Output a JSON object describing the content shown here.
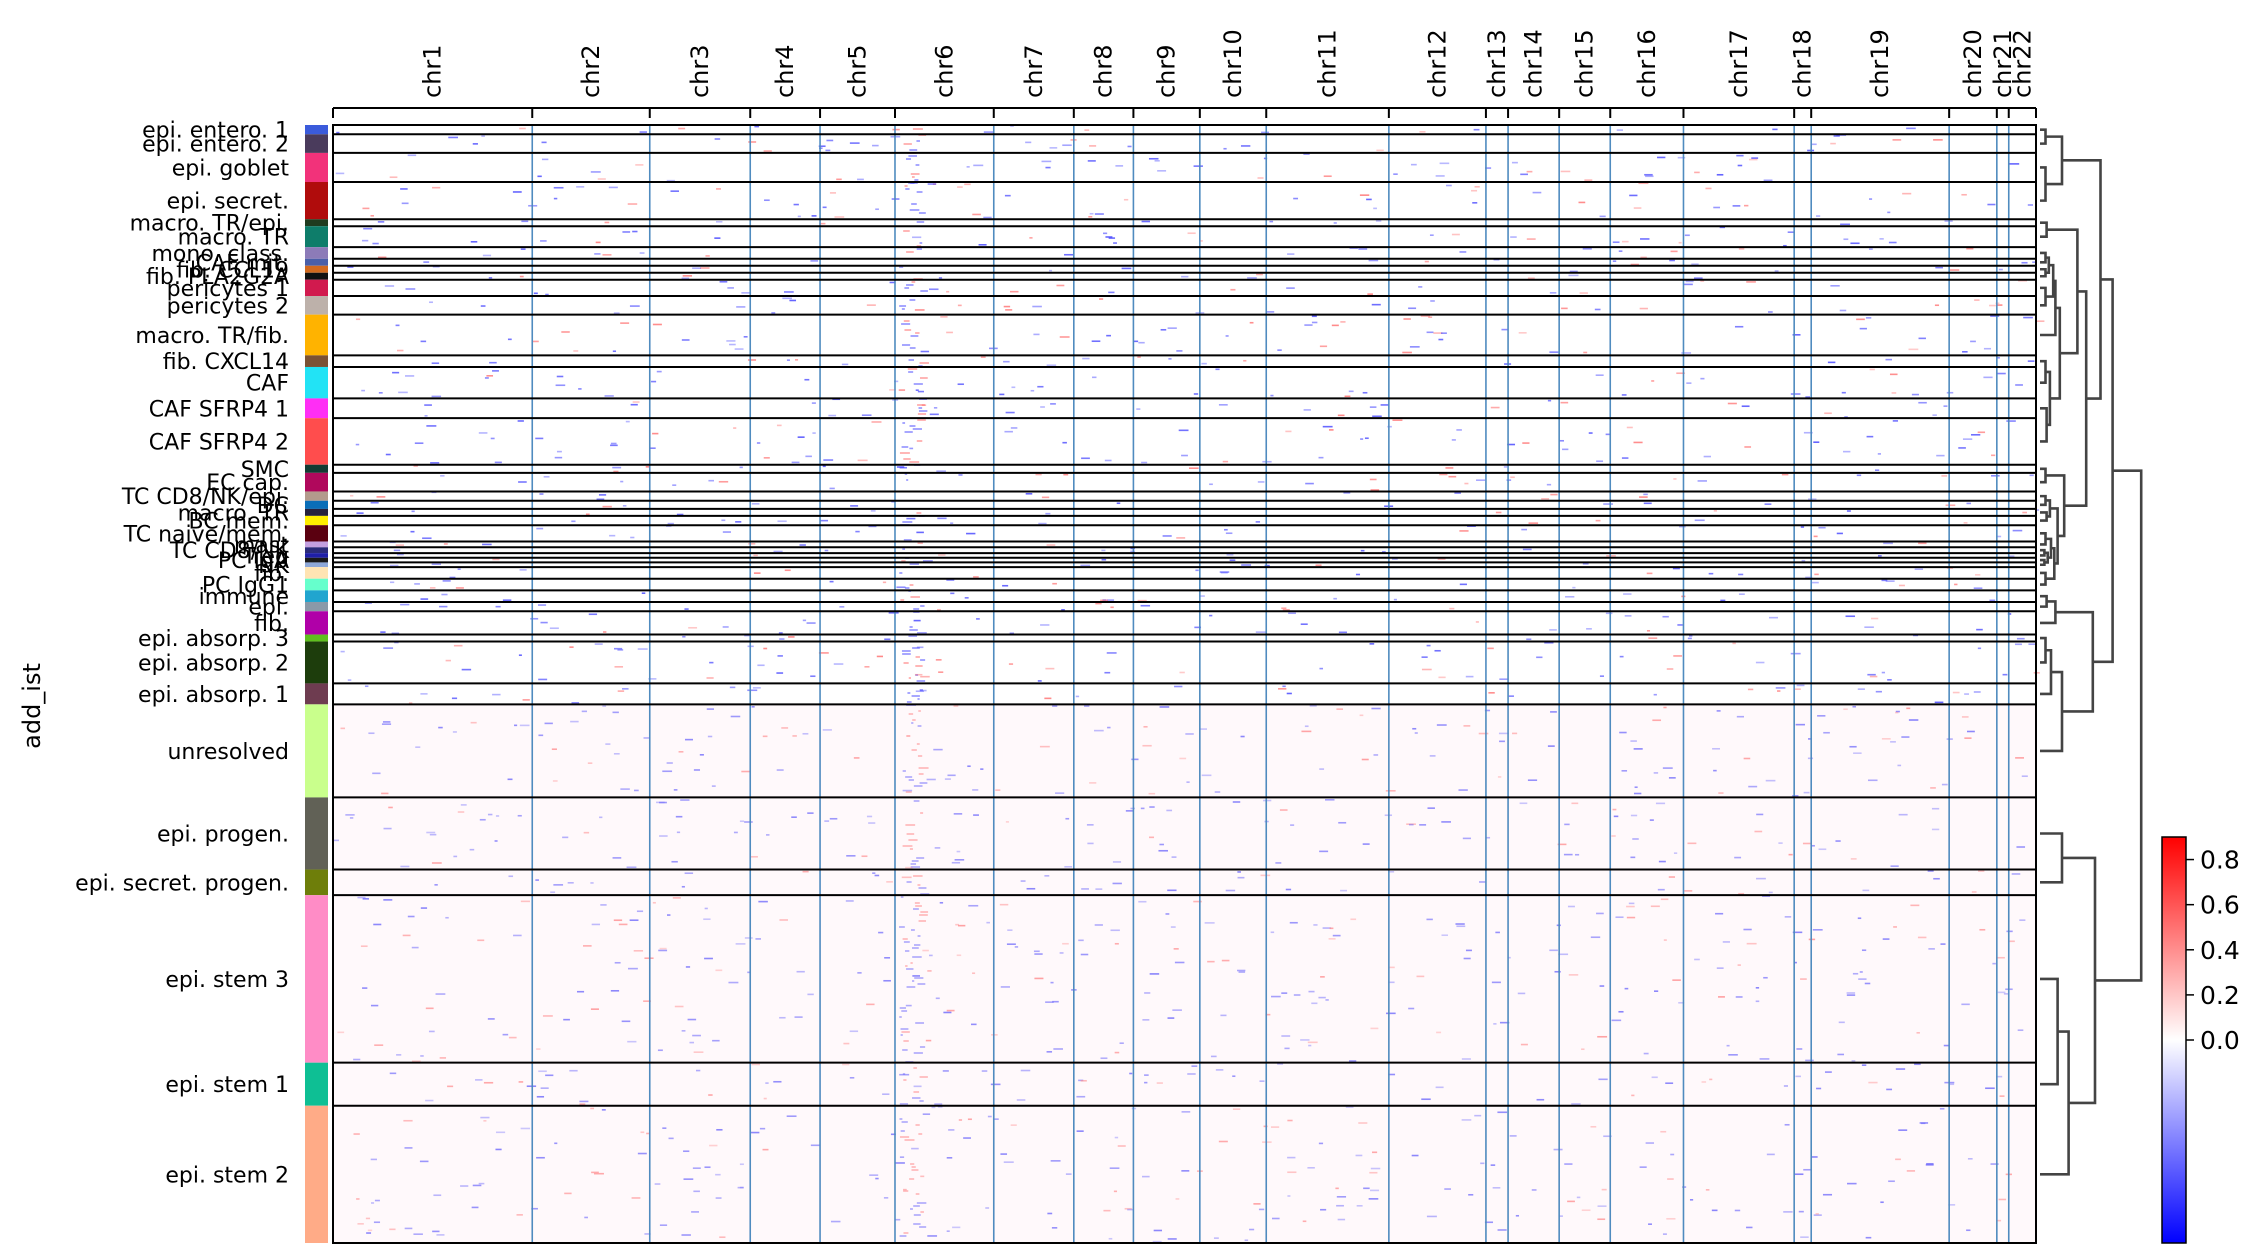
{
  "chart_data": {
    "type": "heatmap",
    "ylabel": "add_ist",
    "x_axis_labels": [
      "chr1",
      "chr2",
      "chr3",
      "chr4",
      "chr5",
      "chr6",
      "chr7",
      "chr8",
      "chr9",
      "chr10",
      "chr11",
      "chr12",
      "chr13",
      "chr14",
      "chr15",
      "chr16",
      "chr17",
      "chr18",
      "chr19",
      "chr20",
      "chr21",
      "chr22"
    ],
    "chromosome_boundaries": [
      0,
      0.117,
      0.186,
      0.245,
      0.286,
      0.33,
      0.388,
      0.435,
      0.47,
      0.509,
      0.548,
      0.62,
      0.677,
      0.69,
      0.72,
      0.75,
      0.793,
      0.858,
      0.868,
      0.949,
      0.977,
      0.984,
      1.0
    ],
    "groups": [
      {
        "label": "epi. entero. 1",
        "color": "#3b5bdb",
        "share": 0.008
      },
      {
        "label": "epi. entero. 2",
        "color": "#4a3b5c",
        "share": 0.016
      },
      {
        "label": "epi. goblet",
        "color": "#f2327a",
        "share": 0.025
      },
      {
        "label": "epi. secret.",
        "color": "#b00c0c",
        "share": 0.032
      },
      {
        "label": "macro. TR/epi.",
        "color": "#1f3b1f",
        "share": 0.006
      },
      {
        "label": "macro. TR",
        "color": "#0e7d6a",
        "share": 0.018
      },
      {
        "label": "mono. class.",
        "color": "#8c7bb8",
        "share": 0.01
      },
      {
        "label": "CAF mit.",
        "color": "#4a5fa8",
        "share": 0.006
      },
      {
        "label": "fib. CCL19",
        "color": "#d2691e",
        "share": 0.006
      },
      {
        "label": "fib. PLA2G2A",
        "color": "#111111",
        "share": 0.006
      },
      {
        "label": "pericytes 1",
        "color": "#d11a4e",
        "share": 0.014
      },
      {
        "label": "pericytes 2",
        "color": "#bdb1aa",
        "share": 0.016
      },
      {
        "label": "macro. TR/fib.",
        "color": "#ffb300",
        "share": 0.035
      },
      {
        "label": "fib. CXCL14",
        "color": "#7b5234",
        "share": 0.01
      },
      {
        "label": "CAF",
        "color": "#22e3f5",
        "share": 0.027
      },
      {
        "label": "CAF SFRP4 1",
        "color": "#ff2ef5",
        "share": 0.017
      },
      {
        "label": "CAF SFRP4 2",
        "color": "#ff4d4d",
        "share": 0.04
      },
      {
        "label": "SMC",
        "color": "#133b33",
        "share": 0.007
      },
      {
        "label": "EC cap.",
        "color": "#b0085c",
        "share": 0.016
      },
      {
        "label": "TC CD8/NK/epi.",
        "color": "#b39a8c",
        "share": 0.008
      },
      {
        "label": "DC",
        "color": "#0a6eb8",
        "share": 0.007
      },
      {
        "label": "macro. TR",
        "color": "#26213d",
        "share": 0.006
      },
      {
        "label": "BC mem.",
        "color": "#ffee00",
        "share": 0.008
      },
      {
        "label": "TC naive/mem.",
        "color": "#5a0010",
        "share": 0.014
      },
      {
        "label": "mast",
        "color": "#c4a0e0",
        "share": 0.005
      },
      {
        "label": "TC CD8/NK",
        "color": "#2b2b7a",
        "share": 0.005
      },
      {
        "label": "Treg",
        "color": "#1f1fa8",
        "share": 0.004
      },
      {
        "label": "PC IgA",
        "color": "#1a1a1a",
        "share": 0.004
      },
      {
        "label": "NK",
        "color": "#8ea8d8",
        "share": 0.004
      },
      {
        "label": "fib.",
        "color": "#ffe4b3",
        "share": 0.01
      },
      {
        "label": "PC IgG1",
        "color": "#66ffcc",
        "share": 0.01
      },
      {
        "label": "immune",
        "color": "#21a5cf",
        "share": 0.01
      },
      {
        "label": "epi.",
        "color": "#8a99a8",
        "share": 0.008
      },
      {
        "label": "fib.",
        "color": "#b000a8",
        "share": 0.02
      },
      {
        "label": "epi. absorp. 3",
        "color": "#5fbf1f",
        "share": 0.006
      },
      {
        "label": "epi. absorp. 2",
        "color": "#1d3d0c",
        "share": 0.036
      },
      {
        "label": "epi. absorp. 1",
        "color": "#6e3c50",
        "share": 0.018
      },
      {
        "label": "unresolved",
        "color": "#c9ff8c",
        "share": 0.08
      },
      {
        "label": "epi. progen.",
        "color": "#616156",
        "share": 0.062
      },
      {
        "label": "epi. secret. progen.",
        "color": "#6e7e0a",
        "share": 0.022
      },
      {
        "label": "epi. stem 3",
        "color": "#ff8cc6",
        "share": 0.144
      },
      {
        "label": "epi. stem 1",
        "color": "#0ebf94",
        "share": 0.037
      },
      {
        "label": "epi. stem 2",
        "color": "#ffab87",
        "share": 0.118
      }
    ],
    "colorbar": {
      "ticks": [
        "0.8",
        "0.6",
        "0.4",
        "0.2",
        "0.0"
      ],
      "vmin": -0.9,
      "vmax": 0.9,
      "colormap": [
        "#0000ff",
        "#ffffff",
        "#ff0000"
      ]
    },
    "highlight_chromosome": "chr6",
    "colors": {
      "gain": "#ff0000",
      "loss": "#0000ff",
      "divider": "#4f8bbf",
      "frame": "#000000",
      "dendrogram": "#444444"
    }
  }
}
